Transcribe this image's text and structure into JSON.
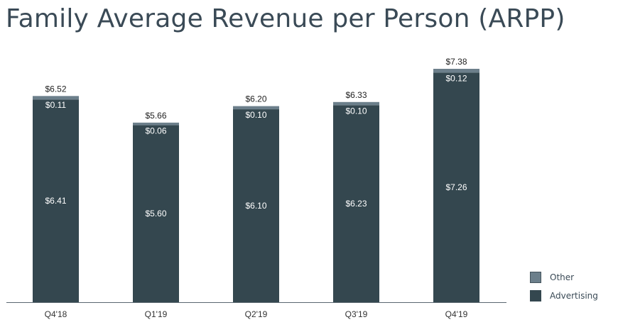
{
  "title": "Family Average Revenue per Person (ARPP)",
  "colors": {
    "advertising": "#34474f",
    "other": "#6c7f8b",
    "axis": "#5a6770",
    "text": "#222222",
    "inner_text": "#ffffff"
  },
  "chart_data": {
    "type": "bar",
    "stacked": true,
    "title": "Family Average Revenue per Person (ARPP)",
    "categories": [
      "Q4'18",
      "Q1'19",
      "Q2'19",
      "Q3'19",
      "Q4'19"
    ],
    "series": [
      {
        "name": "Advertising",
        "values": [
          6.41,
          5.6,
          6.1,
          6.23,
          7.26
        ],
        "labels": [
          "$6.41",
          "$5.60",
          "$6.10",
          "$6.23",
          "$7.26"
        ]
      },
      {
        "name": "Other",
        "values": [
          0.11,
          0.06,
          0.1,
          0.1,
          0.12
        ],
        "labels": [
          "$0.11",
          "$0.06",
          "$0.10",
          "$0.10",
          "$0.12"
        ]
      }
    ],
    "totals": [
      6.52,
      5.66,
      6.2,
      6.33,
      7.38
    ],
    "total_labels": [
      "$6.52",
      "$5.66",
      "$6.20",
      "$6.33",
      "$7.38"
    ],
    "ylim": [
      0,
      7.38
    ],
    "grid": false,
    "legend_position": "bottom-right"
  },
  "legend": {
    "other_label": "Other",
    "advertising_label": "Advertising"
  }
}
